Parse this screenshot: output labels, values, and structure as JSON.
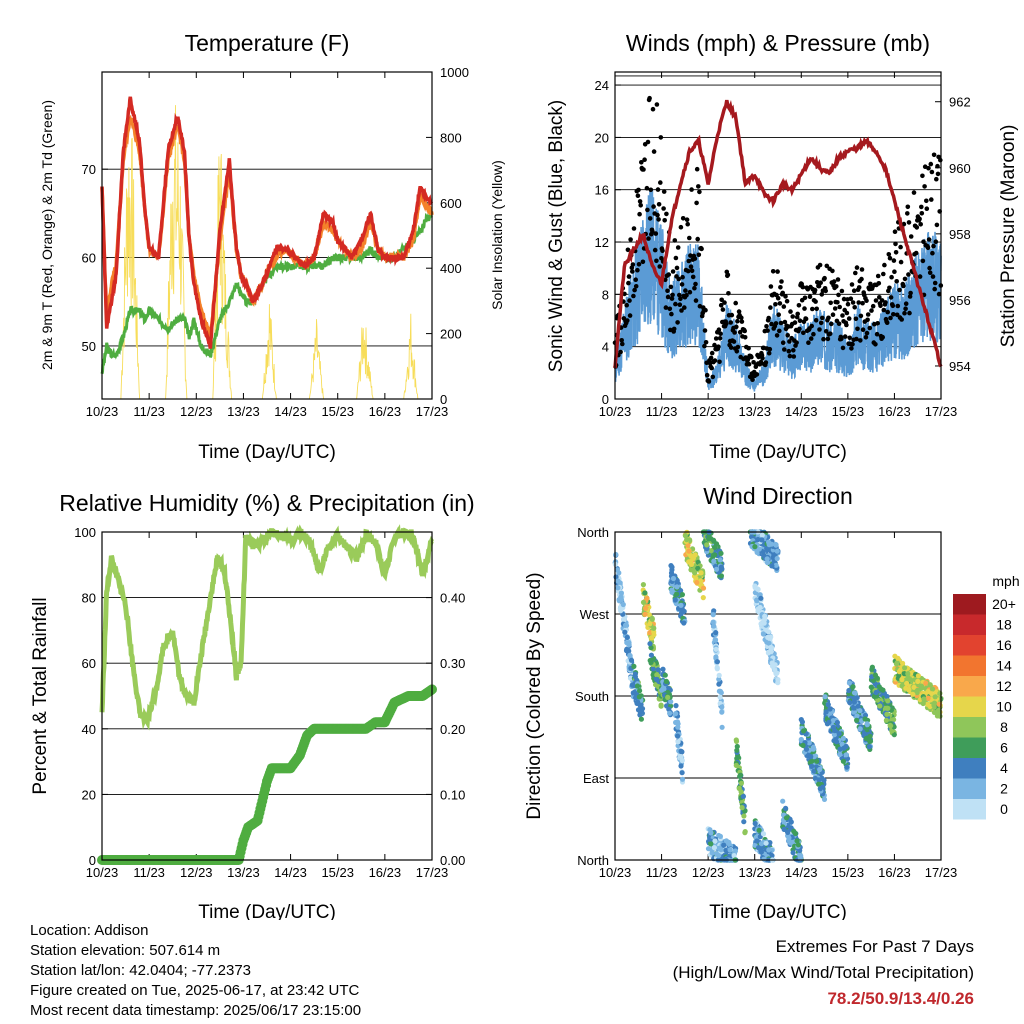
{
  "chart_data": [
    {
      "type": "line",
      "title": "Temperature (F)",
      "xlabel": "Time (Day/UTC)",
      "ylabel": "2m & 9m T (Red, Orange) & 2m Td (Green)",
      "y2label": "Solar Insolation (Yellow)",
      "x_ticks": [
        "10/23",
        "11/23",
        "12/23",
        "13/23",
        "14/23",
        "15/23",
        "16/23",
        "17/23"
      ],
      "ylim": [
        44,
        81
      ],
      "y_ticks": [
        50,
        60,
        70
      ],
      "y2lim": [
        0,
        1000
      ],
      "y2_ticks": [
        0,
        200,
        400,
        600,
        800,
        1000
      ],
      "grid": "horizontal",
      "colors": {
        "t2m": "#d42a23",
        "t9m": "#f4822a",
        "td": "#4fad40",
        "solar": "#f7dd5a"
      },
      "x": [
        10.0,
        10.1,
        10.2,
        10.3,
        10.45,
        10.6,
        10.8,
        10.9,
        11.0,
        11.2,
        11.4,
        11.6,
        11.75,
        11.85,
        11.95,
        12.1,
        12.3,
        12.5,
        12.7,
        12.85,
        12.95,
        13.05,
        13.2,
        13.4,
        13.55,
        13.7,
        13.9,
        14.1,
        14.3,
        14.5,
        14.7,
        14.9,
        15.0,
        15.15,
        15.3,
        15.5,
        15.7,
        15.85,
        16.0,
        16.2,
        16.4,
        16.6,
        16.75,
        16.85,
        17.0
      ],
      "series": [
        {
          "key": "t2m",
          "values": [
            68,
            52,
            55,
            58,
            72,
            78,
            73,
            66,
            61,
            60,
            72,
            76,
            72,
            62,
            57,
            53,
            50,
            63,
            71,
            61,
            58,
            57,
            55,
            57,
            59,
            61,
            61,
            60,
            59,
            60,
            65,
            64,
            62,
            61,
            60,
            62,
            65,
            61,
            60,
            60,
            60,
            63,
            68,
            67,
            66
          ]
        },
        {
          "key": "t9m",
          "values": [
            68,
            53,
            57,
            59,
            71,
            76,
            72,
            66,
            61,
            60,
            71,
            75,
            71,
            62,
            58,
            54,
            51,
            62,
            70,
            61,
            58,
            57,
            55,
            57,
            59,
            60,
            61,
            60,
            59,
            60,
            64,
            63,
            62,
            61,
            60,
            61,
            64,
            61,
            60,
            60,
            60,
            62,
            67,
            66,
            65
          ]
        },
        {
          "key": "td",
          "values": [
            47,
            50,
            49,
            49,
            51,
            54,
            54,
            53,
            54,
            53,
            52,
            53,
            53,
            51,
            53,
            50,
            49,
            53,
            55,
            57,
            56,
            55,
            55,
            57,
            58,
            59,
            59,
            59,
            59,
            59,
            59,
            60,
            60,
            60,
            60,
            60,
            61,
            60,
            60,
            60,
            61,
            62,
            63,
            64,
            65
          ]
        }
      ],
      "solar": {
        "x": [
          10.0,
          10.4,
          10.55,
          10.65,
          10.8,
          11.1,
          11.35,
          11.5,
          11.65,
          11.8,
          12.05,
          12.35,
          12.5,
          12.6,
          12.75,
          13.1,
          13.4,
          13.55,
          13.7,
          14.05,
          14.4,
          14.55,
          14.7,
          15.1,
          15.4,
          15.55,
          15.75,
          16.1,
          16.4,
          16.55,
          16.7,
          17.0
        ],
        "values": [
          0,
          0,
          950,
          800,
          0,
          0,
          0,
          980,
          850,
          0,
          0,
          0,
          940,
          500,
          0,
          0,
          0,
          350,
          0,
          0,
          0,
          250,
          0,
          0,
          0,
          300,
          0,
          0,
          0,
          280,
          0,
          0
        ]
      }
    },
    {
      "type": "line",
      "title": "Winds (mph) & Pressure (mb)",
      "xlabel": "Time (Day/UTC)",
      "ylabel": "Sonic Wind & Gust (Blue, Black)",
      "y2label": "Station Pressure (Maroon)",
      "x_ticks": [
        "10/23",
        "11/23",
        "12/23",
        "13/23",
        "14/23",
        "15/23",
        "16/23",
        "17/23"
      ],
      "ylim": [
        0,
        25
      ],
      "y_ticks": [
        0,
        4,
        8,
        12,
        16,
        20,
        24
      ],
      "y2lim": [
        953.0,
        962.9
      ],
      "y2_ticks": [
        954,
        956,
        958,
        960,
        962
      ],
      "grid": "horizontal",
      "colors": {
        "wind": "#5b9bd5",
        "gust": "#000000",
        "pressure": "#a5191e"
      },
      "x": [
        10.0,
        10.2,
        10.4,
        10.6,
        10.8,
        11.0,
        11.2,
        11.4,
        11.6,
        11.8,
        12.0,
        12.2,
        12.4,
        12.6,
        12.8,
        13.0,
        13.2,
        13.4,
        13.6,
        13.8,
        14.0,
        14.2,
        14.4,
        14.6,
        14.8,
        15.0,
        15.2,
        15.4,
        15.6,
        15.8,
        16.0,
        16.2,
        16.4,
        16.6,
        16.8,
        17.0
      ],
      "series": [
        {
          "key": "wind",
          "values": [
            2,
            5,
            7,
            10,
            11,
            9,
            6,
            7,
            8,
            8,
            1,
            2,
            5,
            4,
            2,
            1,
            2,
            5,
            4,
            3,
            4,
            4,
            5,
            4,
            4,
            3,
            5,
            4,
            4,
            5,
            6,
            6,
            7,
            8,
            9,
            8
          ]
        },
        {
          "key": "gust",
          "values": [
            4,
            8,
            11,
            15,
            20,
            15,
            9,
            10,
            12,
            14,
            2,
            4,
            8,
            6,
            4,
            2,
            4,
            8,
            7,
            5,
            7,
            7,
            8,
            8,
            7,
            6,
            8,
            8,
            7,
            8,
            10,
            11,
            12,
            14,
            15,
            14
          ]
        },
        {
          "key": "pressure",
          "values": [
            954.0,
            957.0,
            957.5,
            958.0,
            957.0,
            956.5,
            958.3,
            959.5,
            960.5,
            960.8,
            959.5,
            961.0,
            962.0,
            961.5,
            959.5,
            959.8,
            959.2,
            959.0,
            959.5,
            959.3,
            959.8,
            960.3,
            960.0,
            959.8,
            960.3,
            960.5,
            960.6,
            960.8,
            960.5,
            960.0,
            959.0,
            958.0,
            957.0,
            956.0,
            955.0,
            954.0
          ]
        }
      ]
    },
    {
      "type": "line",
      "title": "Relative Humidity (%) & Precipitation (in)",
      "xlabel": "Time (Day/UTC)",
      "ylabel": "Percent & Total Rainfall",
      "x_ticks": [
        "10/23",
        "11/23",
        "12/23",
        "13/23",
        "14/23",
        "15/23",
        "16/23",
        "17/23"
      ],
      "ylim": [
        0,
        100
      ],
      "y_ticks": [
        0,
        20,
        40,
        60,
        80,
        100
      ],
      "y2lim": [
        0,
        0.5
      ],
      "y2_ticks": [
        "0.00",
        "0.10",
        "0.20",
        "0.30",
        "0.40"
      ],
      "grid": "horizontal",
      "colors": {
        "rh": "#9acb5a",
        "precip": "#4fad40"
      },
      "x": [
        10.0,
        10.1,
        10.2,
        10.35,
        10.5,
        10.65,
        10.8,
        10.95,
        11.15,
        11.3,
        11.5,
        11.65,
        11.8,
        11.95,
        12.1,
        12.3,
        12.45,
        12.6,
        12.75,
        12.85,
        12.95,
        13.05,
        13.2,
        13.4,
        13.6,
        13.8,
        14.0,
        14.2,
        14.4,
        14.6,
        14.8,
        15.0,
        15.2,
        15.4,
        15.6,
        15.8,
        16.0,
        16.2,
        16.4,
        16.6,
        16.8,
        17.0
      ],
      "series": [
        {
          "key": "rh",
          "values": [
            45,
            82,
            92,
            85,
            78,
            60,
            45,
            42,
            52,
            65,
            70,
            55,
            50,
            48,
            62,
            80,
            92,
            88,
            70,
            56,
            60,
            98,
            96,
            97,
            100,
            99,
            97,
            100,
            97,
            88,
            95,
            99,
            95,
            92,
            99,
            97,
            87,
            98,
            100,
            99,
            87,
            98
          ]
        },
        {
          "key": "precip",
          "x": [
            10.0,
            11.0,
            12.0,
            12.9,
            13.0,
            13.1,
            13.3,
            13.4,
            13.5,
            13.6,
            13.8,
            14.0,
            14.2,
            14.35,
            14.5,
            14.9,
            15.3,
            15.6,
            15.8,
            16.0,
            16.2,
            16.5,
            16.8,
            17.0
          ],
          "values": [
            0,
            0,
            0,
            0,
            0.03,
            0.05,
            0.06,
            0.09,
            0.12,
            0.14,
            0.14,
            0.14,
            0.16,
            0.19,
            0.2,
            0.2,
            0.2,
            0.2,
            0.21,
            0.21,
            0.24,
            0.25,
            0.25,
            0.26
          ]
        }
      ]
    },
    {
      "type": "scatter",
      "title": "Wind Direction",
      "xlabel": "Time (Day/UTC)",
      "ylabel": "Direction (Colored By Speed)",
      "x_ticks": [
        "10/23",
        "11/23",
        "12/23",
        "13/23",
        "14/23",
        "15/23",
        "16/23",
        "17/23"
      ],
      "ylim": [
        0,
        360
      ],
      "y_ticks": [
        "North",
        "East",
        "South",
        "West",
        "North"
      ],
      "grid": "horizontal",
      "legend": {
        "title": "mph",
        "labels": [
          "20+",
          "18",
          "16",
          "14",
          "12",
          "10",
          "8",
          "6",
          "4",
          "2",
          "0"
        ],
        "colors": [
          "#9e1a1f",
          "#c8292c",
          "#e2432f",
          "#f2752f",
          "#f9a84b",
          "#e6d64b",
          "#8fc65a",
          "#3f9d5a",
          "#3f7fbf",
          "#7ab5e2",
          "#bfe1f5"
        ]
      },
      "clusters": [
        {
          "x0": 10.0,
          "x1": 10.4,
          "d0": 330,
          "d1": 190,
          "speed": 2
        },
        {
          "x0": 10.4,
          "x1": 10.6,
          "d0": 200,
          "d1": 160,
          "speed": 5
        },
        {
          "x0": 10.6,
          "x1": 10.85,
          "d0": 290,
          "d1": 240,
          "speed": 9
        },
        {
          "x0": 10.75,
          "x1": 11.0,
          "d0": 230,
          "d1": 180,
          "speed": 6
        },
        {
          "x0": 11.0,
          "x1": 11.2,
          "d0": 200,
          "d1": 170,
          "speed": 5
        },
        {
          "x0": 11.2,
          "x1": 11.5,
          "d0": 310,
          "d1": 270,
          "speed": 4
        },
        {
          "x0": 11.3,
          "x1": 11.45,
          "d0": 160,
          "d1": 100,
          "speed": 2
        },
        {
          "x0": 11.5,
          "x1": 11.9,
          "d0": 350,
          "d1": 300,
          "speed": 9
        },
        {
          "x0": 11.9,
          "x1": 12.3,
          "d0": 360,
          "d1": 320,
          "speed": 5
        },
        {
          "x0": 12.1,
          "x1": 12.3,
          "d0": 270,
          "d1": 160,
          "speed": 2
        },
        {
          "x0": 12.0,
          "x1": 12.6,
          "d0": 20,
          "d1": 0,
          "speed": 3
        },
        {
          "x0": 12.6,
          "x1": 12.8,
          "d0": 120,
          "d1": 40,
          "speed": 6
        },
        {
          "x0": 12.9,
          "x1": 13.5,
          "d0": 360,
          "d1": 330,
          "speed": 3
        },
        {
          "x0": 13.0,
          "x1": 13.5,
          "d0": 300,
          "d1": 200,
          "speed": 1
        },
        {
          "x0": 13.0,
          "x1": 13.4,
          "d0": 30,
          "d1": 0,
          "speed": 3
        },
        {
          "x0": 13.6,
          "x1": 14.0,
          "d0": 50,
          "d1": 0,
          "speed": 4
        },
        {
          "x0": 14.0,
          "x1": 14.5,
          "d0": 140,
          "d1": 80,
          "speed": 4
        },
        {
          "x0": 14.5,
          "x1": 15.0,
          "d0": 170,
          "d1": 110,
          "speed": 4
        },
        {
          "x0": 15.0,
          "x1": 15.5,
          "d0": 190,
          "d1": 130,
          "speed": 4
        },
        {
          "x0": 15.5,
          "x1": 16.0,
          "d0": 200,
          "d1": 150,
          "speed": 6
        },
        {
          "x0": 16.0,
          "x1": 17.0,
          "d0": 210,
          "d1": 170,
          "speed": 9
        }
      ]
    }
  ],
  "info": {
    "location": "Location: Addison",
    "elevation": "Station elevation: 507.614 m",
    "latlon": "Station lat/lon: 42.0404; -77.2373",
    "created": "Figure created on Tue, 2025-06-17, at 23:42 UTC",
    "recent": "Most recent data timestamp: 2025/06/17 23:15:00"
  },
  "extremes": {
    "title": "Extremes For Past 7 Days",
    "subtitle": "(High/Low/Max Wind/Total Precipitation)",
    "values": "78.2/50.9/13.4/0.26"
  }
}
